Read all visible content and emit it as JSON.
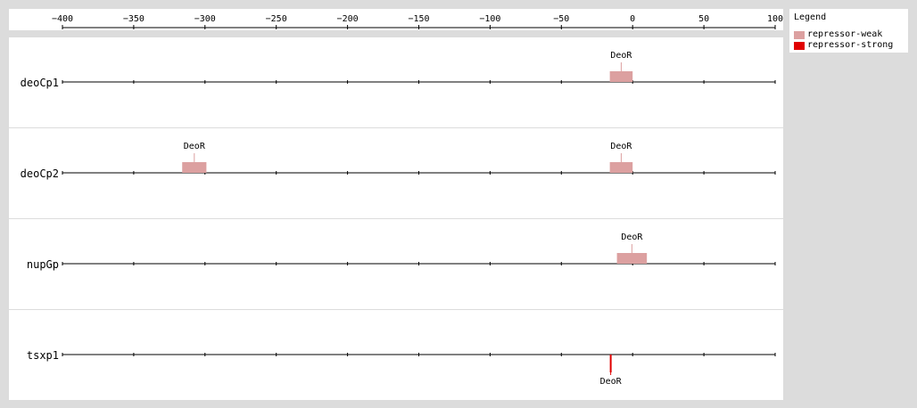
{
  "axis": {
    "min": -400,
    "max": 100,
    "ticks": [
      -400,
      -350,
      -300,
      -250,
      -200,
      -150,
      -100,
      -50,
      0,
      50,
      100
    ],
    "tick_labels": [
      "−400",
      "−350",
      "−300",
      "−250",
      "−200",
      "−150",
      "−100",
      "−50",
      "0",
      "50",
      "100"
    ]
  },
  "legend": {
    "title": "Legend",
    "items": [
      {
        "label": "repressor-weak",
        "color": "#dca0a0"
      },
      {
        "label": "repressor-strong",
        "color": "#e00000"
      }
    ]
  },
  "tracks": [
    {
      "name": "deoCp1",
      "sites": [
        {
          "label": "DeoR",
          "start": -16,
          "end": 0,
          "type": "repressor-weak",
          "strand": "+"
        }
      ]
    },
    {
      "name": "deoCp2",
      "sites": [
        {
          "label": "DeoR",
          "start": -316,
          "end": -299,
          "type": "repressor-weak",
          "strand": "+"
        },
        {
          "label": "DeoR",
          "start": -16,
          "end": 0,
          "type": "repressor-weak",
          "strand": "+"
        }
      ]
    },
    {
      "name": "nupGp",
      "sites": [
        {
          "label": "DeoR",
          "start": -11,
          "end": 10,
          "type": "repressor-weak",
          "strand": "+"
        }
      ]
    },
    {
      "name": "tsxp1",
      "sites": [
        {
          "label": "DeoR",
          "start": -16,
          "end": -15,
          "type": "repressor-strong",
          "strand": "-"
        }
      ]
    }
  ]
}
